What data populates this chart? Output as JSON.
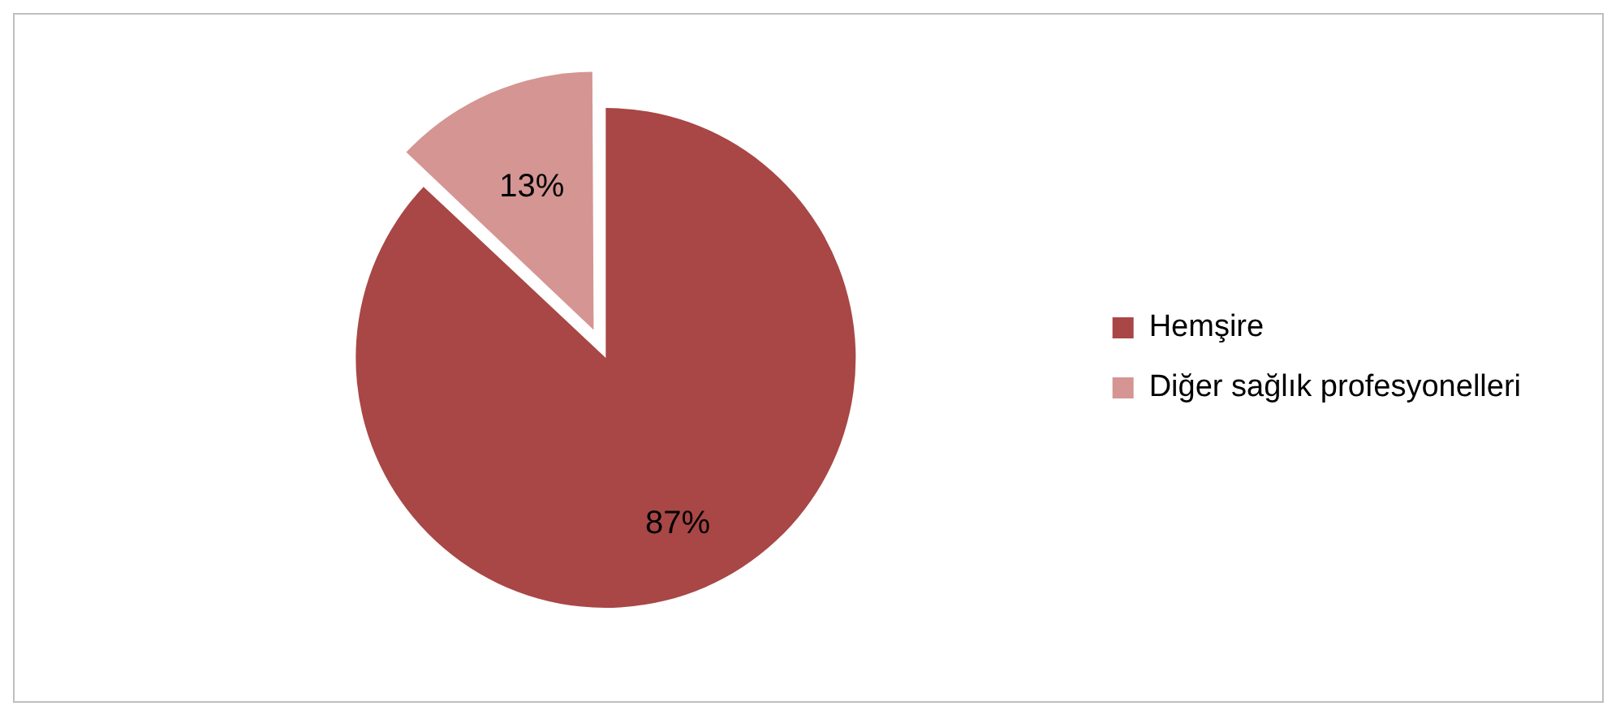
{
  "chart_data": {
    "type": "pie",
    "categories": [
      "Hemşire",
      "Diğer sağlık profesyonelleri"
    ],
    "values": [
      87,
      13
    ],
    "colors": [
      "#a84746",
      "#d49593"
    ],
    "value_labels": [
      "87%",
      "13%"
    ],
    "legend": "right"
  }
}
